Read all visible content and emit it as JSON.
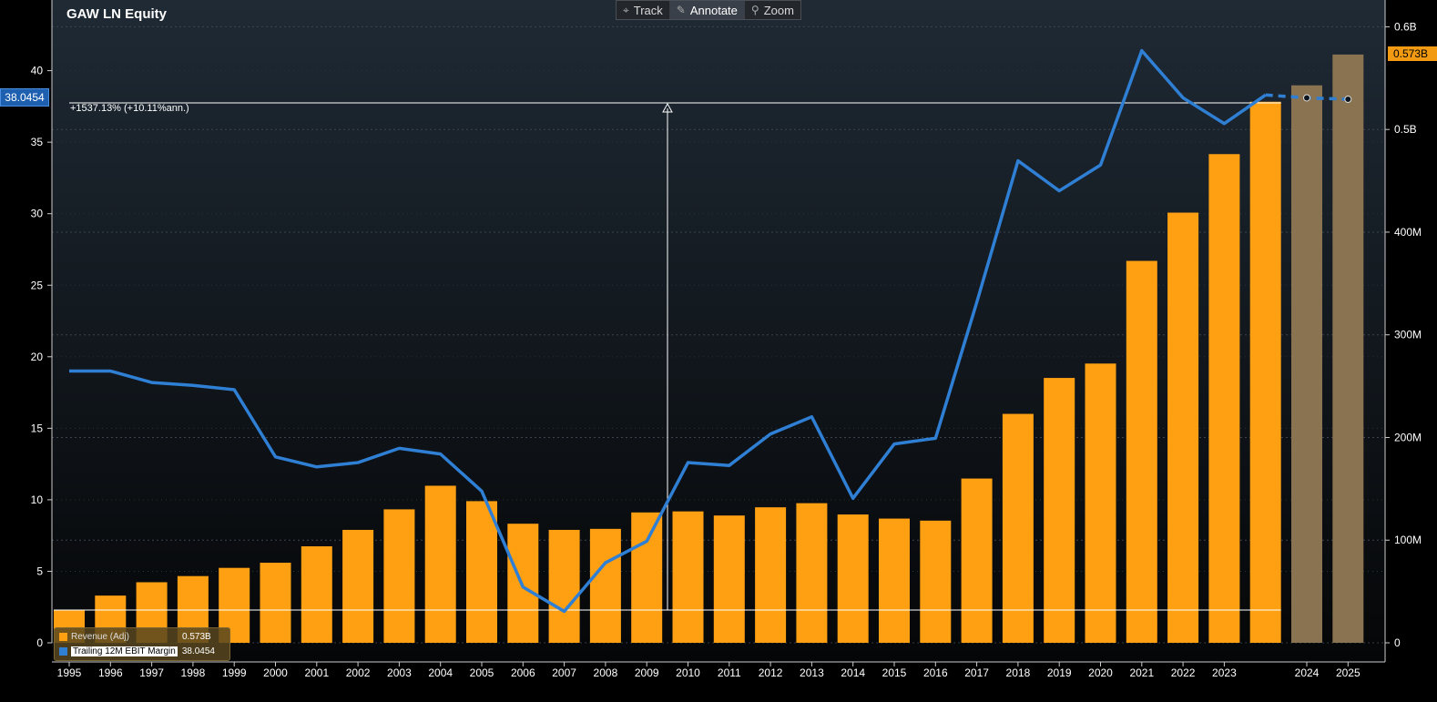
{
  "title": "GAW LN Equity",
  "toolbar": {
    "track": "Track",
    "annotate": "Annotate",
    "zoom": "Zoom"
  },
  "annotation": {
    "text": "+1537.13% (+10.11%ann.)"
  },
  "tags": {
    "left": "38.0454",
    "right": "0.573B"
  },
  "legend": {
    "revenue_label": "Revenue  (Adj)",
    "revenue_value": "0.573B",
    "ebit_label": "Trailing 12M EBIT Margin",
    "ebit_value": "38.0454"
  },
  "colors": {
    "bar": "#ffa012",
    "bar_estimate": "#8a7350",
    "line": "#2f7fd4",
    "background_top": "#1e2833",
    "background_bottom": "#050608"
  },
  "chart_data": {
    "type": "bar",
    "categories": [
      "1995",
      "1996",
      "1997",
      "1998",
      "1999",
      "2000",
      "2001",
      "2002",
      "2003",
      "2004",
      "2005",
      "2006",
      "2007",
      "2008",
      "2009",
      "2010",
      "2011",
      "2012",
      "2013",
      "2014",
      "2015",
      "2016",
      "2017",
      "2018",
      "2019",
      "2020",
      "2021",
      "2022",
      "2023",
      "",
      "2024",
      "2025"
    ],
    "x_tick_labels": [
      "1995",
      "1996",
      "1997",
      "1998",
      "1999",
      "2000",
      "2001",
      "2002",
      "2003",
      "2004",
      "2005",
      "2006",
      "2007",
      "2008",
      "2009",
      "2010",
      "2011",
      "2012",
      "2013",
      "2014",
      "2015",
      "2016",
      "2017",
      "2018",
      "2019",
      "2020",
      "2021",
      "2022",
      "2023",
      "2024",
      "2025"
    ],
    "series": [
      {
        "name": "Revenue  (Adj)",
        "axis": "right",
        "values": [
          32,
          46,
          59,
          65,
          73,
          78,
          94,
          110,
          130,
          153,
          138,
          116,
          110,
          111,
          127,
          128,
          124,
          132,
          136,
          125,
          121,
          119,
          160,
          223,
          258,
          272,
          372,
          419,
          476,
          527,
          543,
          573
        ],
        "estimate_from_index": 30
      },
      {
        "name": "Trailing 12M EBIT Margin",
        "axis": "left",
        "type": "line",
        "values": [
          19.0,
          19.0,
          18.2,
          18.0,
          17.7,
          13.0,
          12.3,
          12.6,
          13.6,
          13.2,
          10.6,
          3.9,
          2.2,
          5.6,
          7.1,
          12.6,
          12.4,
          14.6,
          15.8,
          10.1,
          13.9,
          14.3,
          23.8,
          33.7,
          31.6,
          33.4,
          41.4,
          38.1,
          36.3,
          38.3,
          38.1,
          38.0
        ],
        "estimate_from_index": 30
      }
    ],
    "y_left": {
      "ticks": [
        0,
        5,
        10,
        15,
        20,
        25,
        30,
        35,
        40
      ],
      "ylim": [
        0,
        42.5
      ]
    },
    "y_right": {
      "ticks": [
        0,
        100,
        200,
        300,
        400,
        500,
        600
      ],
      "tick_labels": [
        "0",
        "100M",
        "200M",
        "300M",
        "400M",
        "0.5B",
        "0.6B"
      ],
      "unit": "M",
      "ylim": [
        0,
        600
      ]
    },
    "grid": true,
    "legend_position": "bottom-left"
  }
}
